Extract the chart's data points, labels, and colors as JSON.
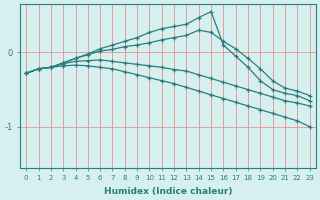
{
  "xlabel": "Humidex (Indice chaleur)",
  "bg_color": "#d6f0f0",
  "line_color": "#2a7d7d",
  "grid_color": "#e89090",
  "xlim": [
    -0.5,
    23.5
  ],
  "ylim": [
    -1.55,
    0.65
  ],
  "yticks": [
    0,
    -1
  ],
  "xticks": [
    0,
    1,
    2,
    3,
    4,
    5,
    6,
    7,
    8,
    9,
    10,
    11,
    12,
    13,
    14,
    15,
    16,
    17,
    18,
    19,
    20,
    21,
    22,
    23
  ],
  "line1_x": [
    0,
    1,
    2,
    3,
    4,
    5,
    6,
    7,
    8,
    9,
    10,
    11,
    12,
    13,
    14,
    15,
    16,
    17,
    18,
    19,
    20,
    21,
    22,
    23
  ],
  "line1_y": [
    -0.28,
    -0.22,
    -0.2,
    -0.18,
    -0.17,
    -0.18,
    -0.2,
    -0.22,
    -0.26,
    -0.3,
    -0.34,
    -0.38,
    -0.42,
    -0.47,
    -0.52,
    -0.57,
    -0.62,
    -0.67,
    -0.72,
    -0.77,
    -0.82,
    -0.87,
    -0.92,
    -1.0
  ],
  "line2_x": [
    0,
    1,
    2,
    3,
    4,
    5,
    6,
    7,
    8,
    9,
    10,
    11,
    12,
    13,
    14,
    15,
    16,
    17,
    18,
    19,
    20,
    21,
    22,
    23
  ],
  "line2_y": [
    -0.28,
    -0.22,
    -0.2,
    -0.15,
    -0.12,
    -0.11,
    -0.1,
    -0.12,
    -0.14,
    -0.16,
    -0.18,
    -0.2,
    -0.23,
    -0.25,
    -0.3,
    -0.35,
    -0.4,
    -0.45,
    -0.5,
    -0.55,
    -0.6,
    -0.65,
    -0.68,
    -0.72
  ],
  "line3_x": [
    0,
    1,
    2,
    3,
    4,
    5,
    6,
    7,
    8,
    9,
    10,
    11,
    12,
    13,
    14,
    15,
    16,
    17,
    18,
    19,
    20,
    21,
    22,
    23
  ],
  "line3_y": [
    -0.28,
    -0.22,
    -0.2,
    -0.14,
    -0.08,
    -0.03,
    0.02,
    0.04,
    0.08,
    0.1,
    0.13,
    0.17,
    0.2,
    0.23,
    0.3,
    0.27,
    0.15,
    0.05,
    -0.08,
    -0.22,
    -0.38,
    -0.48,
    -0.52,
    -0.58
  ],
  "line4_x": [
    0,
    1,
    2,
    3,
    4,
    5,
    6,
    7,
    8,
    9,
    10,
    11,
    12,
    13,
    14,
    15,
    16,
    17,
    18,
    19,
    20,
    21,
    22,
    23
  ],
  "line4_y": [
    -0.28,
    -0.22,
    -0.2,
    -0.14,
    -0.08,
    -0.02,
    0.05,
    0.1,
    0.15,
    0.2,
    0.27,
    0.32,
    0.35,
    0.38,
    0.47,
    0.55,
    0.1,
    -0.05,
    -0.2,
    -0.38,
    -0.5,
    -0.55,
    -0.58,
    -0.65
  ]
}
